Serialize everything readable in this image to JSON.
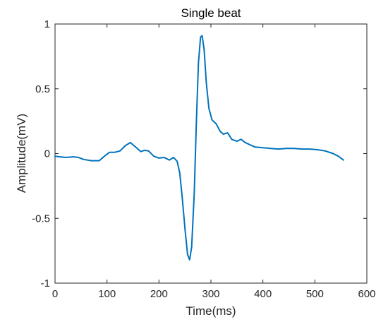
{
  "chart_data": {
    "type": "line",
    "title": "Single beat",
    "xlabel": "Time(ms)",
    "ylabel": "Amplitude(mV)",
    "xlim": [
      0,
      600
    ],
    "ylim": [
      -1,
      1
    ],
    "xticks": [
      0,
      100,
      200,
      300,
      400,
      500,
      600
    ],
    "yticks": [
      -1,
      -0.5,
      0,
      0.5,
      1
    ],
    "xtick_labels": [
      "0",
      "100",
      "200",
      "300",
      "400",
      "500",
      "600"
    ],
    "ytick_labels": [
      "-1",
      "-0.5",
      "0",
      "0.5",
      "1"
    ],
    "grid": false,
    "series": [
      {
        "color": "#0072BD",
        "x": [
          0,
          10,
          20,
          35,
          45,
          55,
          70,
          85,
          95,
          105,
          115,
          125,
          135,
          145,
          155,
          165,
          172,
          180,
          190,
          200,
          210,
          220,
          228,
          235,
          240,
          245,
          250,
          255,
          259,
          263,
          268,
          272,
          276,
          280,
          283,
          287,
          291,
          296,
          302,
          310,
          318,
          324,
          332,
          340,
          350,
          358,
          366,
          374,
          385,
          400,
          415,
          430,
          445,
          460,
          475,
          490,
          505,
          520,
          535,
          545,
          555
        ],
        "y": [
          -0.02,
          -0.025,
          -0.03,
          -0.025,
          -0.03,
          -0.045,
          -0.055,
          -0.055,
          -0.02,
          0.01,
          0.01,
          0.02,
          0.06,
          0.085,
          0.05,
          0.015,
          0.025,
          0.02,
          -0.02,
          -0.035,
          -0.03,
          -0.05,
          -0.03,
          -0.06,
          -0.15,
          -0.35,
          -0.58,
          -0.78,
          -0.82,
          -0.72,
          -0.3,
          0.25,
          0.7,
          0.9,
          0.91,
          0.8,
          0.55,
          0.35,
          0.26,
          0.23,
          0.17,
          0.15,
          0.16,
          0.11,
          0.095,
          0.11,
          0.085,
          0.07,
          0.05,
          0.045,
          0.04,
          0.035,
          0.04,
          0.04,
          0.035,
          0.035,
          0.03,
          0.02,
          0.0,
          -0.02,
          -0.05
        ]
      }
    ]
  }
}
